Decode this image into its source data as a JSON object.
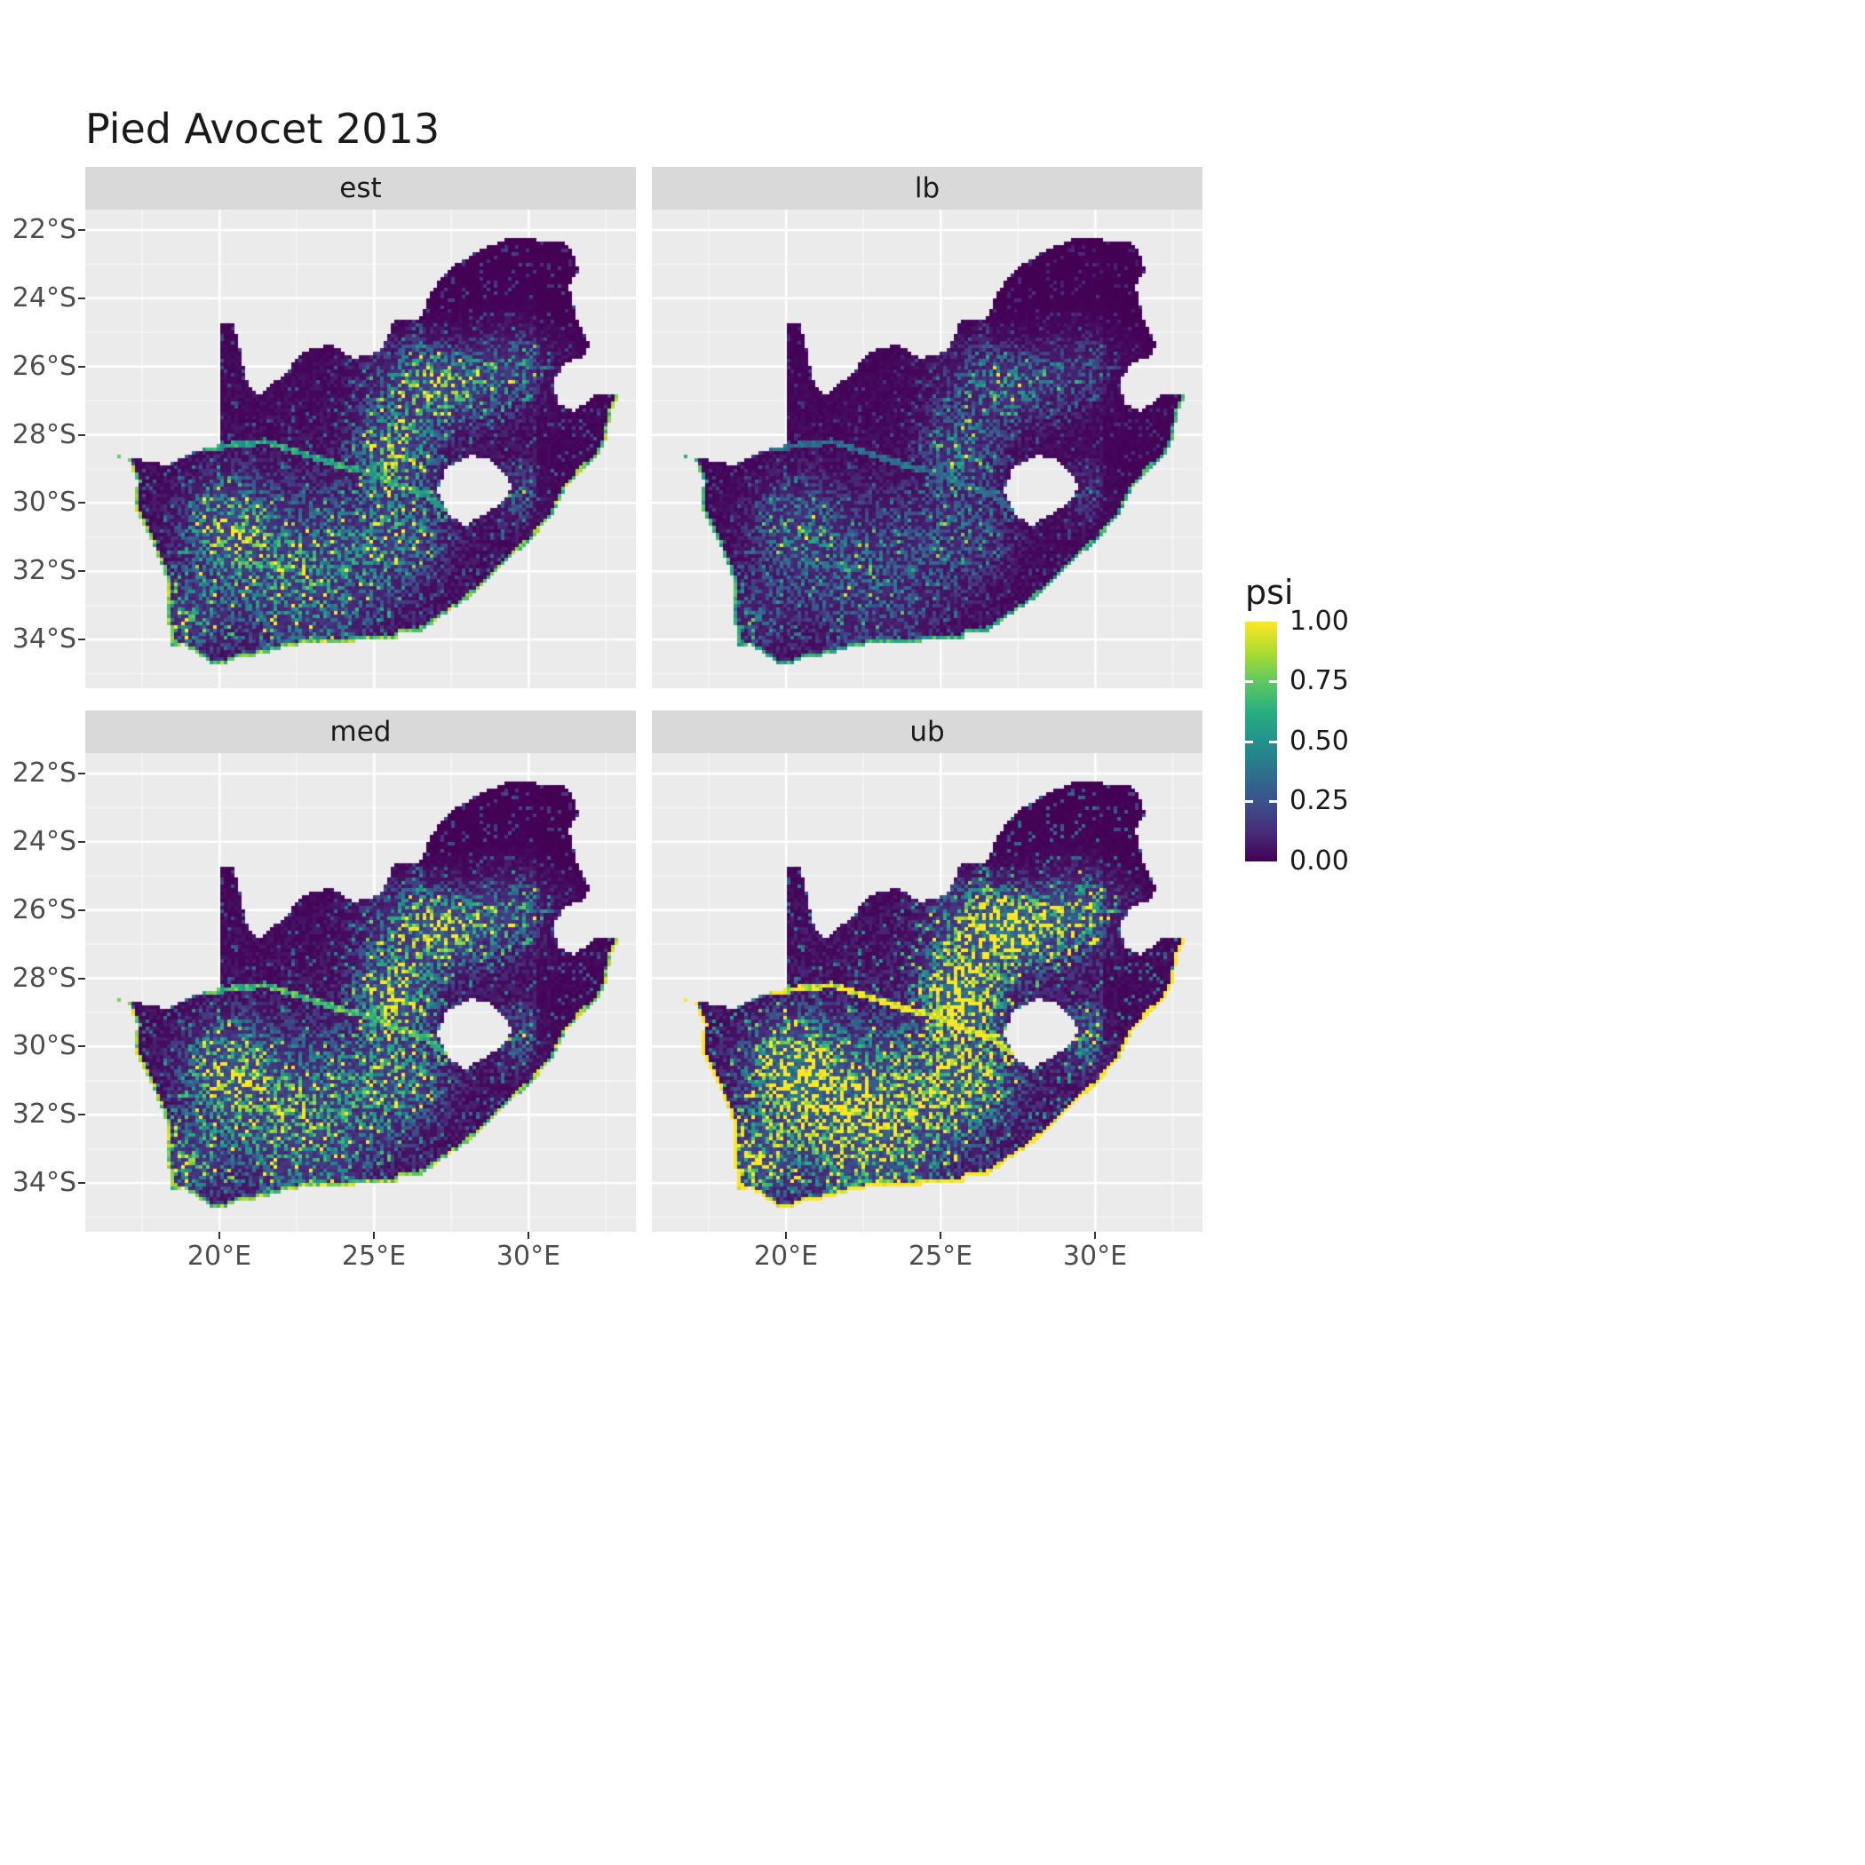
{
  "title": "Pied Avocet 2013",
  "facets": [
    {
      "id": "est",
      "label": "est",
      "multiplier": 0.9,
      "coast_multiplier": 0.95
    },
    {
      "id": "lb",
      "label": "lb",
      "multiplier": 0.55,
      "coast_multiplier": 0.78
    },
    {
      "id": "med",
      "label": "med",
      "multiplier": 1.05,
      "coast_multiplier": 1.0
    },
    {
      "id": "ub",
      "label": "ub",
      "multiplier": 1.55,
      "coast_multiplier": 1.45
    }
  ],
  "axes": {
    "x_tick_labels": [
      "20°E",
      "25°E",
      "30°E"
    ],
    "y_tick_labels": [
      "22°S",
      "24°S",
      "26°S",
      "28°S",
      "30°S",
      "32°S",
      "34°S"
    ]
  },
  "legend": {
    "title": "psi",
    "tick_labels": [
      "1.00",
      "0.75",
      "0.50",
      "0.25",
      "0.00"
    ]
  },
  "colors": {
    "panel_bg": "#EBEBEB",
    "strip_bg": "#D9D9D9",
    "grid": "#FFFFFF",
    "axis_text": "#4D4D4D",
    "title_text": "#1A1A1A",
    "viridis": [
      "#440154",
      "#472D7B",
      "#3B528B",
      "#2C728E",
      "#21918C",
      "#28AE80",
      "#5EC962",
      "#ADDC30",
      "#FDE725"
    ]
  },
  "chart_data": {
    "type": "heatmap",
    "title": "Pied Avocet 2013",
    "variable": "psi",
    "value_range": [
      0,
      1
    ],
    "palette": "viridis",
    "region": "South Africa",
    "facets": [
      "est",
      "lb",
      "med",
      "ub"
    ],
    "legend_ticks": [
      1.0,
      0.75,
      0.5,
      0.25,
      0.0
    ],
    "x_ticks_deg_east": [
      20,
      25,
      30
    ],
    "y_ticks_deg_south": [
      22,
      24,
      26,
      28,
      30,
      32,
      34
    ],
    "x_range_deg_east": [
      15.66,
      33.46
    ],
    "y_range_deg_south": [
      -35.43,
      -21.4
    ],
    "geometry": {
      "coast_point_count": 35,
      "south_africa": [
        [
          16.45,
          -28.58
        ],
        [
          17.05,
          -28.75
        ],
        [
          17.35,
          -29.35
        ],
        [
          17.25,
          -30.05
        ],
        [
          17.55,
          -30.65
        ],
        [
          17.85,
          -31.25
        ],
        [
          18.2,
          -31.9
        ],
        [
          18.35,
          -32.55
        ],
        [
          18.25,
          -33.15
        ],
        [
          18.45,
          -33.9
        ],
        [
          18.35,
          -34.2
        ],
        [
          18.85,
          -34.15
        ],
        [
          19.3,
          -34.45
        ],
        [
          19.9,
          -34.8
        ],
        [
          20.55,
          -34.55
        ],
        [
          21.3,
          -34.45
        ],
        [
          22.2,
          -34.2
        ],
        [
          22.95,
          -34.1
        ],
        [
          23.85,
          -34.1
        ],
        [
          24.85,
          -34.0
        ],
        [
          25.65,
          -34.05
        ],
        [
          25.85,
          -33.75
        ],
        [
          26.45,
          -33.78
        ],
        [
          27.15,
          -33.35
        ],
        [
          27.95,
          -32.85
        ],
        [
          28.65,
          -32.3
        ],
        [
          29.35,
          -31.65
        ],
        [
          30.1,
          -31.05
        ],
        [
          30.75,
          -30.35
        ],
        [
          31.15,
          -29.6
        ],
        [
          31.75,
          -29.0
        ],
        [
          32.25,
          -28.6
        ],
        [
          32.55,
          -28.0
        ],
        [
          32.65,
          -27.35
        ],
        [
          32.9,
          -26.85
        ],
        [
          32.15,
          -26.85
        ],
        [
          31.45,
          -27.3
        ],
        [
          30.95,
          -27.1
        ],
        [
          30.8,
          -26.45
        ],
        [
          31.15,
          -25.9
        ],
        [
          31.75,
          -25.75
        ],
        [
          31.95,
          -25.35
        ],
        [
          31.55,
          -24.55
        ],
        [
          31.3,
          -23.65
        ],
        [
          31.6,
          -23.2
        ],
        [
          31.3,
          -22.4
        ],
        [
          30.45,
          -22.3
        ],
        [
          29.45,
          -22.2
        ],
        [
          28.35,
          -22.6
        ],
        [
          27.35,
          -23.2
        ],
        [
          26.9,
          -23.75
        ],
        [
          26.45,
          -24.6
        ],
        [
          25.65,
          -24.65
        ],
        [
          25.2,
          -25.55
        ],
        [
          24.35,
          -25.75
        ],
        [
          23.55,
          -25.35
        ],
        [
          22.75,
          -25.55
        ],
        [
          22.05,
          -26.25
        ],
        [
          21.25,
          -26.85
        ],
        [
          20.85,
          -26.4
        ],
        [
          20.7,
          -25.6
        ],
        [
          20.45,
          -24.78
        ],
        [
          20.0,
          -24.78
        ],
        [
          19.98,
          -28.3
        ],
        [
          19.2,
          -28.5
        ],
        [
          18.3,
          -28.9
        ],
        [
          17.55,
          -28.75
        ]
      ],
      "lesotho": [
        [
          27.05,
          -29.65
        ],
        [
          27.35,
          -28.95
        ],
        [
          28.1,
          -28.6
        ],
        [
          28.75,
          -28.75
        ],
        [
          29.25,
          -29.15
        ],
        [
          29.45,
          -29.55
        ],
        [
          29.15,
          -29.95
        ],
        [
          28.55,
          -30.35
        ],
        [
          27.95,
          -30.65
        ],
        [
          27.4,
          -30.35
        ]
      ]
    },
    "pattern": {
      "hotspots": [
        [
          25.7,
          -28.5,
          0.8,
          0.75
        ],
        [
          26.3,
          -26.2,
          1.0,
          0.55
        ],
        [
          28.9,
          -26.0,
          0.9,
          0.45
        ],
        [
          20.2,
          -30.6,
          0.9,
          0.65
        ],
        [
          21.5,
          -31.8,
          1.3,
          0.45
        ],
        [
          24.0,
          -31.5,
          1.5,
          0.35
        ],
        [
          19.0,
          -33.3,
          0.8,
          0.5
        ],
        [
          23.0,
          -33.8,
          1.2,
          0.3
        ],
        [
          27.3,
          -26.6,
          0.7,
          0.5
        ],
        [
          30.0,
          -25.4,
          0.8,
          0.35
        ],
        [
          29.6,
          -29.8,
          0.6,
          0.3
        ],
        [
          25.9,
          -30.8,
          1.0,
          0.4
        ]
      ],
      "river": [
        [
          17.2,
          -28.6
        ],
        [
          19.5,
          -28.4
        ],
        [
          21.5,
          -28.2
        ],
        [
          23.5,
          -28.8
        ],
        [
          24.8,
          -29.1
        ],
        [
          26.5,
          -29.7
        ],
        [
          27.5,
          -30.3
        ]
      ]
    }
  }
}
